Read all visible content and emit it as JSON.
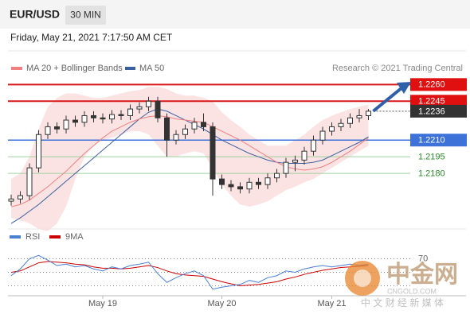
{
  "header": {
    "symbol": "EUR/USD",
    "timeframe": "30 MIN",
    "datetime": "Friday, May 21, 2021 7:17:50 AM CET"
  },
  "chart_data": {
    "type": "candlestick",
    "legend": {
      "ma20": "MA 20 + Bollinger Bands",
      "ma50": "MA 50"
    },
    "credit": "Research © 2021 Trading Central",
    "categories": [
      null,
      null,
      null,
      null,
      null,
      null,
      null,
      null,
      null,
      null,
      "May 19",
      null,
      null,
      null,
      null,
      null,
      null,
      null,
      null,
      null,
      null,
      null,
      null,
      "May 20",
      null,
      null,
      null,
      null,
      null,
      null,
      null,
      null,
      null,
      null,
      null,
      "May 21",
      null,
      null,
      null,
      null
    ],
    "open": [
      1.2155,
      1.2157,
      1.216,
      1.2185,
      1.2215,
      1.2222,
      1.222,
      1.2228,
      1.2226,
      1.2232,
      1.223,
      1.2229,
      1.2233,
      1.2232,
      1.2238,
      1.224,
      1.2245,
      1.223,
      1.221,
      1.2215,
      1.222,
      1.2226,
      1.2222,
      1.2175,
      1.217,
      1.2168,
      1.2166,
      1.2172,
      1.217,
      1.2176,
      1.218,
      1.219,
      1.2192,
      1.22,
      1.221,
      1.2218,
      1.2222,
      1.2225,
      1.223,
      1.2232
    ],
    "high": [
      1.2161,
      1.2164,
      1.2189,
      1.2219,
      1.2226,
      1.2226,
      1.2232,
      1.2232,
      1.2236,
      1.2236,
      1.2234,
      1.2237,
      1.2237,
      1.2242,
      1.2244,
      1.2249,
      1.2249,
      1.2234,
      1.2219,
      1.2224,
      1.223,
      1.2234,
      1.2226,
      1.2179,
      1.2174,
      1.2172,
      1.2176,
      1.2176,
      1.218,
      1.2184,
      1.2194,
      1.2196,
      1.2204,
      1.2214,
      1.2222,
      1.2226,
      1.2229,
      1.2234,
      1.2238,
      1.2238
    ],
    "low": [
      1.2151,
      1.2153,
      1.2156,
      1.2181,
      1.2211,
      1.2216,
      1.2216,
      1.2222,
      1.2222,
      1.2226,
      1.2225,
      1.2225,
      1.2228,
      1.2228,
      1.2234,
      1.2236,
      1.2226,
      1.2195,
      1.2206,
      1.2211,
      1.2216,
      1.2218,
      1.216,
      1.2166,
      1.2164,
      1.2162,
      1.2162,
      1.2166,
      1.2166,
      1.2172,
      1.2176,
      1.2182,
      1.2188,
      1.2196,
      1.2206,
      1.2214,
      1.2218,
      1.2221,
      1.2226,
      1.2228
    ],
    "close": [
      1.2157,
      1.216,
      1.2185,
      1.2215,
      1.2222,
      1.222,
      1.2228,
      1.2226,
      1.2232,
      1.223,
      1.2229,
      1.2233,
      1.2232,
      1.2238,
      1.224,
      1.2245,
      1.223,
      1.221,
      1.2215,
      1.222,
      1.2226,
      1.2222,
      1.2175,
      1.217,
      1.2168,
      1.2166,
      1.2172,
      1.217,
      1.2176,
      1.218,
      1.219,
      1.2192,
      1.22,
      1.221,
      1.2218,
      1.2222,
      1.2225,
      1.223,
      1.2232,
      1.2236
    ],
    "ma20": [
      1.215,
      1.2152,
      1.2156,
      1.2162,
      1.2168,
      1.2175,
      1.2182,
      1.219,
      1.2198,
      1.2205,
      1.2212,
      1.2218,
      1.2222,
      1.2226,
      1.2229,
      1.2231,
      1.2232,
      1.2231,
      1.2229,
      1.2228,
      1.2227,
      1.2226,
      1.2222,
      1.2218,
      1.2214,
      1.221,
      1.2205,
      1.22,
      1.2195,
      1.219,
      1.2186,
      1.2184,
      1.2183,
      1.2184,
      1.2186,
      1.219,
      1.2195,
      1.22,
      1.2206,
      1.2212
    ],
    "ma50": [
      1.2135,
      1.214,
      1.2146,
      1.2152,
      1.2159,
      1.2166,
      1.2173,
      1.218,
      1.2187,
      1.2194,
      1.2201,
      1.2208,
      1.2215,
      1.2222,
      1.2229,
      1.2235,
      1.2238,
      1.2236,
      1.2232,
      1.2228,
      1.2224,
      1.222,
      1.2215,
      1.221,
      1.2206,
      1.2202,
      1.2198,
      1.2195,
      1.2192,
      1.219,
      1.2189,
      1.2189,
      1.2189,
      1.219,
      1.2192,
      1.2196,
      1.22,
      1.2204,
      1.2208,
      1.2213
    ],
    "bb_upper": [
      1.2175,
      1.218,
      1.2195,
      1.222,
      1.224,
      1.2248,
      1.2252,
      1.2252,
      1.225,
      1.2248,
      1.2248,
      1.225,
      1.2252,
      1.2254,
      1.2255,
      1.2258,
      1.2258,
      1.2256,
      1.2252,
      1.225,
      1.225,
      1.2248,
      1.2245,
      1.2235,
      1.2228,
      1.2222,
      1.2215,
      1.221,
      1.2205,
      1.2205,
      1.2205,
      1.221,
      1.2215,
      1.2222,
      1.2228,
      1.2232,
      1.2235,
      1.2238,
      1.224,
      1.2242
    ],
    "bb_lower": [
      1.214,
      1.2138,
      1.2135,
      1.213,
      1.2128,
      1.2135,
      1.215,
      1.2175,
      1.2195,
      1.2205,
      1.221,
      1.2212,
      1.2215,
      1.2218,
      1.2218,
      1.2215,
      1.2205,
      1.2195,
      1.2195,
      1.2198,
      1.22,
      1.2198,
      1.2185,
      1.217,
      1.216,
      1.2152,
      1.215,
      1.2152,
      1.2155,
      1.216,
      1.2165,
      1.2168,
      1.2172,
      1.2175,
      1.218,
      1.2185,
      1.219,
      1.2195,
      1.22,
      1.2205
    ],
    "ma20_color": "#f08080",
    "ma50_color": "#3a5f9e",
    "band_color": "#fcdede",
    "up_color": "#ffffff",
    "down_color": "#333333",
    "ylim": [
      1.2125,
      1.2286
    ],
    "levels": [
      {
        "value": 1.226,
        "label": "1.2260",
        "kind": "resistance"
      },
      {
        "value": 1.2245,
        "kind": "resistance"
      },
      {
        "value": 1.2236,
        "kind": "last"
      },
      {
        "value": 1.221,
        "label": "1.2210",
        "kind": "pivot"
      },
      {
        "value": 1.2195,
        "kind": "support"
      },
      {
        "value": 1.218,
        "label": "1.2180",
        "kind": "support"
      }
    ],
    "rsi": {
      "legend": {
        "rsi": "RSI",
        "ma": "9MA"
      },
      "rsi_color": "#4a7fd4",
      "ma_color": "#cc0000",
      "values": [
        45,
        55,
        70,
        75,
        68,
        60,
        62,
        58,
        60,
        55,
        52,
        58,
        55,
        60,
        62,
        65,
        48,
        35,
        42,
        48,
        52,
        45,
        25,
        28,
        30,
        32,
        38,
        35,
        42,
        45,
        52,
        50,
        55,
        58,
        60,
        58,
        60,
        62,
        60,
        62
      ],
      "ma": [
        50,
        52,
        58,
        64,
        66,
        65,
        64,
        62,
        61,
        58,
        56,
        56,
        55,
        56,
        58,
        60,
        57,
        52,
        48,
        46,
        45,
        44,
        40,
        36,
        33,
        30,
        31,
        32,
        34,
        36,
        40,
        43,
        47,
        50,
        53,
        55,
        57,
        58,
        59,
        60
      ],
      "ylim": [
        0,
        100
      ],
      "yticks": [
        70
      ],
      "levels": [
        70,
        50,
        30
      ]
    }
  },
  "watermark": {
    "logo": "中金网",
    "domain": "CNGOLD.COM",
    "slogan": "中 文 财 经 新 媒 体"
  }
}
